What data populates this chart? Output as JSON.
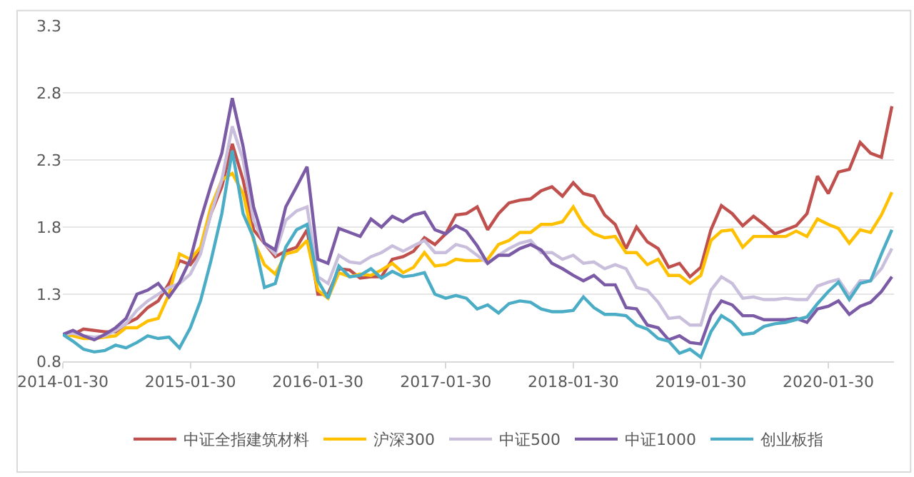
{
  "chart_data": {
    "type": "line",
    "x": [
      "2014-01-30",
      "2014-02-28",
      "2014-03-30",
      "2014-04-30",
      "2014-05-30",
      "2014-06-30",
      "2014-07-30",
      "2014-08-30",
      "2014-09-30",
      "2014-10-30",
      "2014-11-30",
      "2014-12-30",
      "2015-01-30",
      "2015-02-28",
      "2015-03-30",
      "2015-04-30",
      "2015-05-30",
      "2015-06-30",
      "2015-07-30",
      "2015-08-30",
      "2015-09-30",
      "2015-10-30",
      "2015-11-30",
      "2015-12-30",
      "2016-01-30",
      "2016-02-28",
      "2016-03-30",
      "2016-04-30",
      "2016-05-30",
      "2016-06-30",
      "2016-07-30",
      "2016-08-30",
      "2016-09-30",
      "2016-10-30",
      "2016-11-30",
      "2016-12-30",
      "2017-01-30",
      "2017-02-28",
      "2017-03-30",
      "2017-04-30",
      "2017-05-30",
      "2017-06-30",
      "2017-07-30",
      "2017-08-30",
      "2017-09-30",
      "2017-10-30",
      "2017-11-30",
      "2017-12-30",
      "2018-01-30",
      "2018-02-28",
      "2018-03-30",
      "2018-04-30",
      "2018-05-30",
      "2018-06-30",
      "2018-07-30",
      "2018-08-30",
      "2018-09-30",
      "2018-10-30",
      "2018-11-30",
      "2018-12-30",
      "2019-01-30",
      "2019-02-28",
      "2019-03-30",
      "2019-04-30",
      "2019-05-30",
      "2019-06-30",
      "2019-07-30",
      "2019-08-30",
      "2019-09-30",
      "2019-10-30",
      "2019-11-30",
      "2019-12-30",
      "2020-01-30",
      "2020-02-28",
      "2020-03-30",
      "2020-04-30",
      "2020-05-30",
      "2020-06-30",
      "2020-07-30"
    ],
    "series": [
      {
        "name": "中证全指建筑材料",
        "color": "#c0504d",
        "values": [
          1.0,
          1.0,
          1.04,
          1.03,
          1.02,
          1.02,
          1.08,
          1.12,
          1.2,
          1.25,
          1.38,
          1.55,
          1.52,
          1.62,
          1.9,
          2.1,
          2.42,
          2.15,
          1.78,
          1.68,
          1.58,
          1.62,
          1.65,
          1.78,
          1.3,
          1.3,
          1.49,
          1.48,
          1.42,
          1.43,
          1.43,
          1.56,
          1.58,
          1.62,
          1.72,
          1.67,
          1.75,
          1.89,
          1.9,
          1.95,
          1.78,
          1.9,
          1.98,
          2.0,
          2.01,
          2.07,
          2.1,
          2.03,
          2.13,
          2.05,
          2.03,
          1.89,
          1.82,
          1.64,
          1.8,
          1.69,
          1.64,
          1.5,
          1.53,
          1.43,
          1.5,
          1.78,
          1.96,
          1.9,
          1.81,
          1.88,
          1.82,
          1.75,
          1.78,
          1.81,
          1.9,
          2.18,
          2.05,
          2.21,
          2.23,
          2.43,
          2.35,
          2.32,
          2.7
        ]
      },
      {
        "name": "沪深300",
        "color": "#ffc000",
        "values": [
          1.0,
          0.99,
          0.97,
          0.97,
          0.98,
          0.99,
          1.05,
          1.05,
          1.1,
          1.12,
          1.3,
          1.6,
          1.56,
          1.65,
          1.95,
          2.15,
          2.2,
          2.05,
          1.7,
          1.52,
          1.45,
          1.6,
          1.62,
          1.7,
          1.33,
          1.27,
          1.46,
          1.43,
          1.45,
          1.44,
          1.48,
          1.53,
          1.46,
          1.5,
          1.61,
          1.51,
          1.52,
          1.56,
          1.55,
          1.55,
          1.56,
          1.67,
          1.7,
          1.76,
          1.76,
          1.82,
          1.82,
          1.84,
          1.95,
          1.82,
          1.75,
          1.72,
          1.73,
          1.61,
          1.61,
          1.52,
          1.56,
          1.44,
          1.44,
          1.38,
          1.44,
          1.7,
          1.77,
          1.78,
          1.65,
          1.73,
          1.73,
          1.73,
          1.73,
          1.77,
          1.73,
          1.86,
          1.82,
          1.79,
          1.68,
          1.78,
          1.76,
          1.89,
          2.06
        ]
      },
      {
        "name": "中证500",
        "color": "#c9bfdc",
        "values": [
          1.0,
          1.01,
          0.99,
          0.98,
          0.99,
          1.03,
          1.08,
          1.18,
          1.25,
          1.3,
          1.35,
          1.38,
          1.45,
          1.6,
          1.9,
          2.15,
          2.55,
          2.3,
          1.85,
          1.68,
          1.6,
          1.85,
          1.92,
          1.95,
          1.43,
          1.38,
          1.59,
          1.54,
          1.53,
          1.58,
          1.61,
          1.66,
          1.62,
          1.66,
          1.7,
          1.61,
          1.61,
          1.67,
          1.65,
          1.59,
          1.53,
          1.59,
          1.64,
          1.68,
          1.7,
          1.61,
          1.61,
          1.56,
          1.59,
          1.53,
          1.54,
          1.49,
          1.52,
          1.49,
          1.35,
          1.33,
          1.24,
          1.12,
          1.13,
          1.07,
          1.07,
          1.33,
          1.43,
          1.38,
          1.27,
          1.28,
          1.26,
          1.26,
          1.27,
          1.26,
          1.26,
          1.36,
          1.39,
          1.41,
          1.29,
          1.4,
          1.4,
          1.49,
          1.64
        ]
      },
      {
        "name": "中证1000",
        "color": "#7b5aa6",
        "values": [
          1.0,
          1.03,
          0.99,
          0.96,
          1.0,
          1.05,
          1.12,
          1.3,
          1.33,
          1.38,
          1.28,
          1.39,
          1.56,
          1.85,
          2.11,
          2.35,
          2.76,
          2.4,
          1.95,
          1.68,
          1.63,
          1.95,
          2.1,
          2.25,
          1.56,
          1.53,
          1.79,
          1.76,
          1.73,
          1.86,
          1.8,
          1.88,
          1.84,
          1.89,
          1.91,
          1.78,
          1.75,
          1.81,
          1.77,
          1.66,
          1.53,
          1.59,
          1.59,
          1.64,
          1.67,
          1.63,
          1.53,
          1.49,
          1.44,
          1.4,
          1.44,
          1.37,
          1.37,
          1.2,
          1.19,
          1.07,
          1.05,
          0.96,
          0.99,
          0.94,
          0.93,
          1.14,
          1.25,
          1.22,
          1.14,
          1.14,
          1.11,
          1.11,
          1.11,
          1.12,
          1.09,
          1.19,
          1.21,
          1.25,
          1.15,
          1.21,
          1.24,
          1.32,
          1.43
        ]
      },
      {
        "name": "创业板指",
        "color": "#4bacc6",
        "values": [
          1.0,
          0.95,
          0.89,
          0.87,
          0.88,
          0.92,
          0.9,
          0.94,
          0.99,
          0.97,
          0.98,
          0.9,
          1.05,
          1.25,
          1.55,
          1.9,
          2.37,
          1.9,
          1.72,
          1.35,
          1.38,
          1.65,
          1.78,
          1.82,
          1.4,
          1.27,
          1.51,
          1.43,
          1.44,
          1.49,
          1.42,
          1.47,
          1.43,
          1.44,
          1.46,
          1.3,
          1.27,
          1.29,
          1.27,
          1.19,
          1.22,
          1.16,
          1.23,
          1.25,
          1.24,
          1.19,
          1.17,
          1.17,
          1.18,
          1.28,
          1.2,
          1.15,
          1.15,
          1.14,
          1.07,
          1.04,
          0.97,
          0.95,
          0.86,
          0.89,
          0.83,
          1.02,
          1.14,
          1.09,
          1.0,
          1.01,
          1.06,
          1.08,
          1.09,
          1.11,
          1.13,
          1.23,
          1.32,
          1.39,
          1.26,
          1.38,
          1.4,
          1.6,
          1.78
        ]
      }
    ],
    "xlim": [
      "2014-01-30",
      "2020-08-05"
    ],
    "xticks": [
      "2014-01-30",
      "2015-01-30",
      "2016-01-30",
      "2017-01-30",
      "2018-01-30",
      "2019-01-30",
      "2020-01-30"
    ],
    "ylim": [
      0.8,
      3.3
    ],
    "yticks": [
      0.8,
      1.3,
      1.8,
      2.3,
      2.8,
      3.3
    ],
    "grid": "y",
    "legend": "bottom",
    "marker": "none",
    "line_style": "solid"
  }
}
